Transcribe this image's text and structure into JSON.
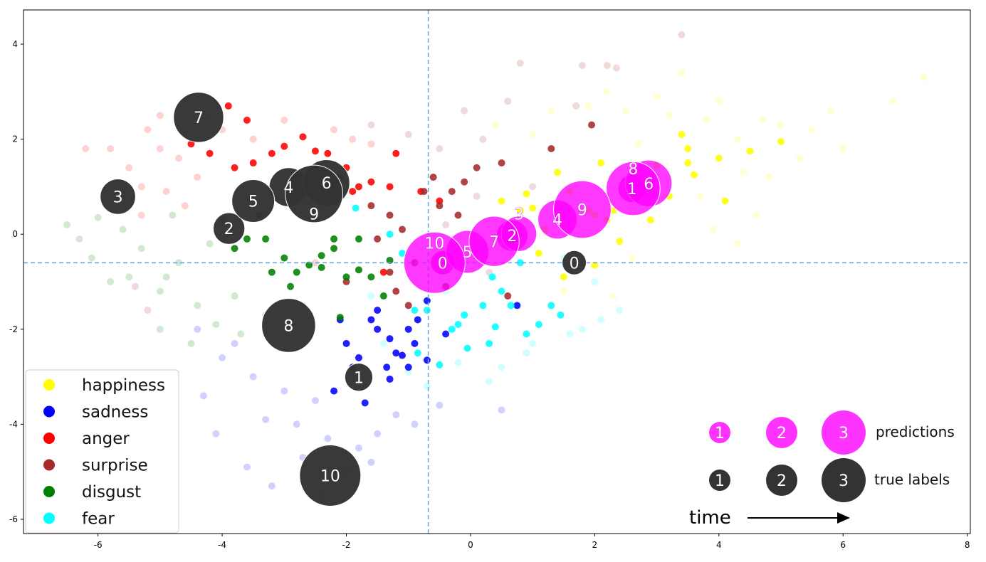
{
  "chart_data": {
    "type": "scatter",
    "xlim": [
      -7.2,
      8.05
    ],
    "ylim": [
      -6.3,
      4.72
    ],
    "x_ticks": [
      -6,
      -4,
      -2,
      0,
      2,
      4,
      6,
      8
    ],
    "y_ticks": [
      -6,
      -4,
      -2,
      0,
      2,
      4
    ],
    "grid": false,
    "reference_lines": {
      "x": -0.68,
      "y": -0.6,
      "color": "#6fa8dc",
      "style": "dashed"
    },
    "legend": {
      "placement": "bottom-left",
      "entries": [
        {
          "label": "happiness",
          "color": "#ffff00"
        },
        {
          "label": "sadness",
          "color": "#0000ff"
        },
        {
          "label": "anger",
          "color": "#ff0000"
        },
        {
          "label": "surprise",
          "color": "#a52a2a"
        },
        {
          "label": "disgust",
          "color": "#008000"
        },
        {
          "label": "fear",
          "color": "#00ffff"
        }
      ]
    },
    "series": [
      {
        "name": "happiness",
        "color": "#ffff00",
        "solid": [
          [
            1.0,
            0.55
          ],
          [
            0.8,
            0.5
          ],
          [
            0.5,
            0.7
          ],
          [
            1.2,
            0.1
          ],
          [
            1.5,
            0.2
          ],
          [
            2.0,
            0.4
          ],
          [
            2.2,
            0.3
          ],
          [
            2.4,
            -0.15
          ],
          [
            2.3,
            0.5
          ],
          [
            2.8,
            1.1
          ],
          [
            3.0,
            1.45
          ],
          [
            3.5,
            1.5
          ],
          [
            3.5,
            1.8
          ],
          [
            3.6,
            1.25
          ],
          [
            4.0,
            1.6
          ],
          [
            4.5,
            1.75
          ],
          [
            5.0,
            1.95
          ],
          [
            1.5,
            -0.9
          ],
          [
            2.0,
            -0.65
          ],
          [
            3.2,
            0.8
          ],
          [
            2.9,
            0.3
          ],
          [
            1.9,
            0.5
          ],
          [
            1.6,
            0.9
          ],
          [
            1.4,
            1.3
          ],
          [
            0.9,
            0.85
          ],
          [
            2.1,
            1.5
          ],
          [
            3.4,
            2.1
          ],
          [
            4.1,
            0.7
          ],
          [
            1.1,
            -0.4
          ],
          [
            0.6,
            -0.2
          ]
        ],
        "faded": [
          [
            3.4,
            3.4
          ],
          [
            7.3,
            3.3
          ],
          [
            6.8,
            2.8
          ],
          [
            3.0,
            2.9
          ],
          [
            4.7,
            2.4
          ],
          [
            5.5,
            2.2
          ],
          [
            5.0,
            2.3
          ],
          [
            4.3,
            2.0
          ],
          [
            3.8,
            2.4
          ],
          [
            2.5,
            2.6
          ],
          [
            2.2,
            3.0
          ],
          [
            1.9,
            2.7
          ],
          [
            5.3,
            1.6
          ],
          [
            4.8,
            1.2
          ],
          [
            4.4,
            1.3
          ],
          [
            6.0,
            1.8
          ],
          [
            3.7,
            0.8
          ],
          [
            4.3,
            -0.2
          ],
          [
            3.9,
            0.1
          ],
          [
            2.6,
            -0.5
          ],
          [
            2.3,
            -1.3
          ],
          [
            1.5,
            -1.2
          ],
          [
            1.0,
            2.1
          ],
          [
            0.4,
            2.3
          ],
          [
            1.3,
            2.6
          ],
          [
            2.7,
            1.9
          ],
          [
            3.2,
            2.5
          ],
          [
            4.0,
            2.8
          ],
          [
            5.8,
            2.6
          ],
          [
            4.6,
            0.4
          ]
        ]
      },
      {
        "name": "sadness",
        "color": "#0000ff",
        "solid": [
          [
            -1.6,
            -1.8
          ],
          [
            -1.5,
            -2.0
          ],
          [
            -1.3,
            -2.2
          ],
          [
            -1.2,
            -2.5
          ],
          [
            -1.0,
            -2.0
          ],
          [
            -0.9,
            -2.3
          ],
          [
            -0.7,
            -2.65
          ],
          [
            -0.7,
            -1.4
          ],
          [
            -1.0,
            -2.8
          ],
          [
            -1.3,
            -3.05
          ],
          [
            -1.8,
            -2.6
          ],
          [
            -2.0,
            -2.3
          ],
          [
            -2.1,
            -1.8
          ],
          [
            -1.7,
            -3.55
          ],
          [
            -1.9,
            -2.8
          ],
          [
            -1.5,
            -1.6
          ],
          [
            -0.4,
            -2.1
          ],
          [
            0.75,
            -1.5
          ],
          [
            -1.1,
            -2.55
          ],
          [
            -2.2,
            -3.3
          ],
          [
            -1.35,
            -2.8
          ],
          [
            -0.85,
            -1.8
          ]
        ],
        "faded": [
          [
            -2.5,
            -3.5
          ],
          [
            -3.0,
            -3.3
          ],
          [
            -3.5,
            -3.0
          ],
          [
            -4.0,
            -2.6
          ],
          [
            -2.8,
            -4.0
          ],
          [
            -2.3,
            -4.3
          ],
          [
            -1.8,
            -4.5
          ],
          [
            -2.0,
            -5.0
          ],
          [
            -2.4,
            -5.5
          ],
          [
            -3.2,
            -5.3
          ],
          [
            -3.6,
            -4.9
          ],
          [
            -4.3,
            -3.4
          ],
          [
            -4.1,
            -4.2
          ],
          [
            -1.5,
            -4.2
          ],
          [
            -1.2,
            -3.8
          ],
          [
            -0.9,
            -4.0
          ],
          [
            -0.5,
            -3.6
          ],
          [
            0.5,
            -3.7
          ],
          [
            -3.3,
            -3.9
          ],
          [
            -2.7,
            -4.7
          ],
          [
            -1.6,
            -4.8
          ],
          [
            -4.4,
            -2.0
          ],
          [
            -3.8,
            -2.3
          ]
        ]
      },
      {
        "name": "anger",
        "color": "#ff0000",
        "solid": [
          [
            -2.7,
            2.05
          ],
          [
            -2.3,
            1.7
          ],
          [
            -2.5,
            1.75
          ],
          [
            -3.0,
            1.85
          ],
          [
            -3.5,
            1.5
          ],
          [
            -3.8,
            1.4
          ],
          [
            -4.2,
            1.7
          ],
          [
            -4.5,
            1.9
          ],
          [
            -3.2,
            1.7
          ],
          [
            -2.0,
            1.4
          ],
          [
            -1.9,
            0.9
          ],
          [
            -1.8,
            1.0
          ],
          [
            -2.1,
            1.2
          ],
          [
            -1.6,
            1.1
          ],
          [
            -1.3,
            1.0
          ],
          [
            -1.2,
            1.7
          ],
          [
            -0.8,
            0.9
          ],
          [
            -0.5,
            0.7
          ],
          [
            -1.4,
            -0.8
          ],
          [
            -2.2,
            0.7
          ],
          [
            -3.6,
            2.4
          ],
          [
            -3.9,
            2.7
          ]
        ],
        "faded": [
          [
            -5.0,
            2.5
          ],
          [
            -5.2,
            2.2
          ],
          [
            -5.0,
            1.8
          ],
          [
            -4.7,
            1.6
          ],
          [
            -5.5,
            1.4
          ],
          [
            -5.8,
            1.8
          ],
          [
            -5.3,
            1.0
          ],
          [
            -4.9,
            0.9
          ],
          [
            -4.4,
            1.2
          ],
          [
            -4.0,
            2.2
          ],
          [
            -3.5,
            2.0
          ],
          [
            -3.0,
            2.4
          ],
          [
            -2.2,
            2.2
          ],
          [
            -1.9,
            2.0
          ],
          [
            -1.6,
            1.9
          ],
          [
            -4.6,
            0.6
          ],
          [
            -5.6,
            0.8
          ],
          [
            -6.2,
            1.8
          ],
          [
            -5.3,
            0.4
          ],
          [
            -4.3,
            2.5
          ]
        ]
      },
      {
        "name": "surprise",
        "color": "#a52a2a",
        "solid": [
          [
            -0.75,
            0.9
          ],
          [
            -0.5,
            0.6
          ],
          [
            -0.3,
            0.9
          ],
          [
            -0.1,
            1.1
          ],
          [
            0.1,
            1.4
          ],
          [
            0.5,
            1.5
          ],
          [
            1.3,
            1.8
          ],
          [
            1.95,
            2.3
          ],
          [
            -1.6,
            0.6
          ],
          [
            -1.3,
            0.4
          ],
          [
            -1.1,
            0.1
          ],
          [
            -1.5,
            -0.1
          ],
          [
            -2.0,
            -1.0
          ],
          [
            -1.2,
            -1.2
          ],
          [
            -0.4,
            -1.1
          ],
          [
            0.6,
            -1.3
          ],
          [
            -0.9,
            -0.6
          ],
          [
            -0.2,
            0.4
          ],
          [
            -1.3,
            -0.8
          ],
          [
            -0.6,
            1.2
          ],
          [
            -1.0,
            -1.5
          ]
        ],
        "faded": [
          [
            3.4,
            4.2
          ],
          [
            0.8,
            3.6
          ],
          [
            1.8,
            3.55
          ],
          [
            2.2,
            3.55
          ],
          [
            2.35,
            3.5
          ],
          [
            1.7,
            2.7
          ],
          [
            0.6,
            2.8
          ],
          [
            -0.1,
            2.6
          ],
          [
            0.2,
            2.0
          ],
          [
            -0.5,
            1.8
          ],
          [
            -1.0,
            2.1
          ],
          [
            -1.6,
            2.3
          ],
          [
            -5.2,
            -1.6
          ],
          [
            -5.4,
            -1.1
          ],
          [
            -2.5,
            -0.6
          ],
          [
            -2.7,
            -1.5
          ],
          [
            0.1,
            0.8
          ],
          [
            -0.4,
            0.2
          ],
          [
            1.0,
            1.0
          ],
          [
            0.3,
            -0.8
          ]
        ]
      },
      {
        "name": "disgust",
        "color": "#008000",
        "solid": [
          [
            -3.0,
            -0.5
          ],
          [
            -2.8,
            -0.8
          ],
          [
            -2.6,
            -0.65
          ],
          [
            -2.4,
            -0.45
          ],
          [
            -2.2,
            -0.3
          ],
          [
            -2.4,
            -0.7
          ],
          [
            -2.0,
            -0.9
          ],
          [
            -1.8,
            -0.75
          ],
          [
            -1.6,
            -0.9
          ],
          [
            -1.4,
            -1.3
          ],
          [
            -2.1,
            -1.75
          ],
          [
            -3.3,
            -0.1
          ],
          [
            -3.6,
            -0.1
          ],
          [
            -3.4,
            0.4
          ],
          [
            -3.2,
            -0.8
          ],
          [
            -2.9,
            -1.1
          ],
          [
            -2.2,
            -0.1
          ],
          [
            -1.8,
            -0.1
          ],
          [
            -1.3,
            -0.55
          ],
          [
            -3.8,
            -0.3
          ],
          [
            -4.0,
            0.3
          ]
        ],
        "faded": [
          [
            -6.5,
            0.2
          ],
          [
            -6.0,
            0.35
          ],
          [
            -5.6,
            0.1
          ],
          [
            -5.3,
            -0.3
          ],
          [
            -5.5,
            -0.9
          ],
          [
            -5.0,
            -1.2
          ],
          [
            -4.7,
            -0.6
          ],
          [
            -4.4,
            -1.5
          ],
          [
            -4.1,
            -1.9
          ],
          [
            -3.7,
            -2.1
          ],
          [
            -3.3,
            -1.7
          ],
          [
            -4.2,
            -0.2
          ],
          [
            -4.8,
            0.4
          ],
          [
            -6.1,
            -0.5
          ],
          [
            -5.0,
            -2.0
          ],
          [
            -4.5,
            -2.3
          ],
          [
            -3.8,
            -1.3
          ],
          [
            -6.3,
            -0.1
          ],
          [
            -5.8,
            -1.0
          ],
          [
            -4.9,
            -0.9
          ]
        ]
      },
      {
        "name": "fear",
        "color": "#00ffff",
        "solid": [
          [
            -1.85,
            0.55
          ],
          [
            -1.3,
            0.0
          ],
          [
            -1.1,
            -0.4
          ],
          [
            -0.9,
            -1.6
          ],
          [
            -0.5,
            -2.75
          ],
          [
            -0.3,
            -2.0
          ],
          [
            -0.1,
            -1.7
          ],
          [
            -0.05,
            -2.4
          ],
          [
            0.2,
            -1.5
          ],
          [
            0.3,
            -2.3
          ],
          [
            0.4,
            -1.95
          ],
          [
            0.5,
            -1.2
          ],
          [
            0.65,
            -1.5
          ],
          [
            0.9,
            -2.1
          ],
          [
            1.3,
            -1.5
          ],
          [
            1.45,
            -1.7
          ],
          [
            0.35,
            -0.9
          ],
          [
            -0.85,
            -2.5
          ],
          [
            -0.7,
            -1.6
          ],
          [
            0.8,
            -0.6
          ],
          [
            1.1,
            -1.9
          ],
          [
            -0.2,
            -1.9
          ]
        ],
        "faded": [
          [
            0.5,
            -2.8
          ],
          [
            0.3,
            -3.1
          ],
          [
            -0.2,
            -2.7
          ],
          [
            1.0,
            -2.3
          ],
          [
            1.6,
            -2.1
          ],
          [
            2.1,
            -1.8
          ],
          [
            2.4,
            -1.6
          ],
          [
            1.5,
            -0.5
          ],
          [
            2.0,
            -1.0
          ],
          [
            -1.6,
            -1.3
          ],
          [
            -1.4,
            -2.3
          ],
          [
            -1.0,
            -2.9
          ],
          [
            -0.7,
            -3.2
          ],
          [
            1.8,
            -2.0
          ],
          [
            0.9,
            -2.5
          ],
          [
            -0.4,
            -1.2
          ]
        ]
      }
    ],
    "true_labels": {
      "color": "#333333",
      "points": [
        {
          "label": "0",
          "x": 1.67,
          "y": -0.6
        },
        {
          "label": "1",
          "x": -1.8,
          "y": -3.01
        },
        {
          "label": "2",
          "x": -3.89,
          "y": 0.12
        },
        {
          "label": "3",
          "x": -5.68,
          "y": 0.79
        },
        {
          "label": "4",
          "x": -2.93,
          "y": 0.99
        },
        {
          "label": "5",
          "x": -3.5,
          "y": 0.7
        },
        {
          "label": "6",
          "x": -2.32,
          "y": 1.08
        },
        {
          "label": "7",
          "x": -4.38,
          "y": 2.46
        },
        {
          "label": "8",
          "x": -2.93,
          "y": -1.92
        },
        {
          "label": "9",
          "x": -2.52,
          "y": 0.85
        },
        {
          "label": "10",
          "x": -2.26,
          "y": -5.08
        }
      ]
    },
    "predictions": {
      "color": "#ff00ff",
      "points": [
        {
          "label": "0",
          "x": -0.45,
          "y": -0.6
        },
        {
          "label": "1",
          "x": 2.6,
          "y": 0.96
        },
        {
          "label": "2",
          "x": 0.67,
          "y": -0.03
        },
        {
          "label": "3",
          "x": 0.78,
          "y": 0.01
        },
        {
          "label": "4",
          "x": 1.4,
          "y": 0.31
        },
        {
          "label": "5",
          "x": -0.05,
          "y": -0.37
        },
        {
          "label": "6",
          "x": 2.87,
          "y": 1.07
        },
        {
          "label": "7",
          "x": 0.38,
          "y": -0.15
        },
        {
          "label": "8",
          "x": 2.62,
          "y": 0.96
        },
        {
          "label": "9",
          "x": 1.8,
          "y": 0.52
        },
        {
          "label": "10",
          "x": -0.58,
          "y": -0.6
        }
      ]
    },
    "size_legend": {
      "steps": [
        "1",
        "2",
        "3"
      ],
      "predictions_label": "predictions",
      "true_labels_label": "true labels",
      "time_label": "time"
    }
  }
}
